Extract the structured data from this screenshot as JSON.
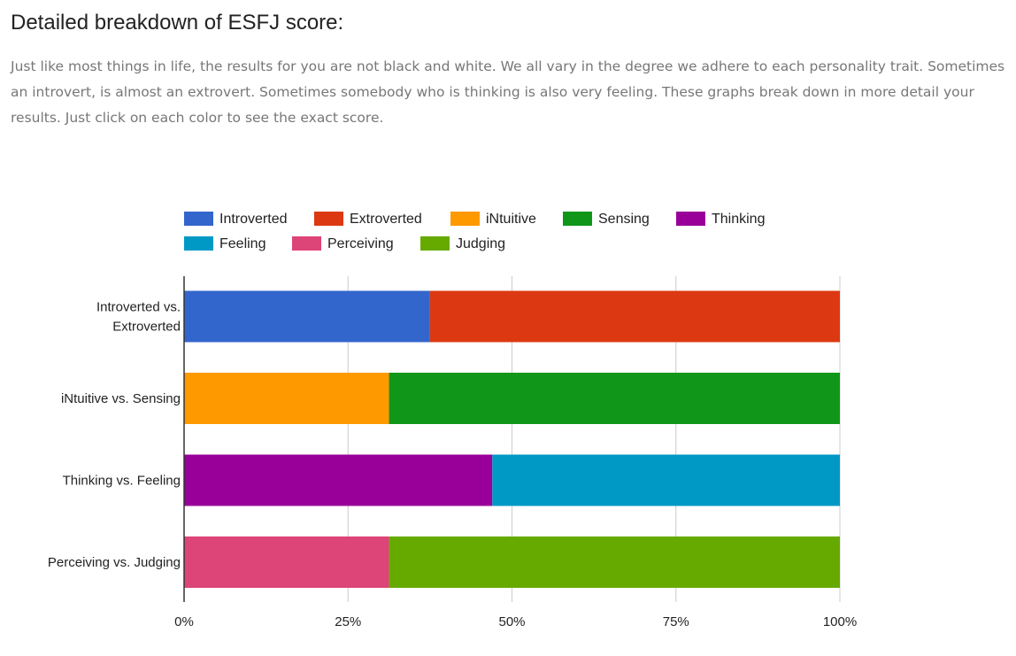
{
  "page": {
    "title": "Detailed breakdown of ESFJ score:",
    "intro": "Just like most things in life, the results for you are not black and white. We all vary in the degree we adhere to each personality trait. Sometimes an introvert, is almost an extrovert. Sometimes somebody who is thinking is also very feeling. These graphs break down in more detail your results. Just click on each color to see the exact score."
  },
  "chart_data": {
    "type": "bar",
    "orientation": "horizontal",
    "stacked": true,
    "legend_position": "top",
    "grid": true,
    "xlim": [
      0,
      100
    ],
    "x_ticks": [
      "0%",
      "25%",
      "50%",
      "75%",
      "100%"
    ],
    "categories": [
      "Introverted vs. Extroverted",
      "iNtuitive vs. Sensing",
      "Thinking vs. Feeling",
      "Perceiving vs. Judging"
    ],
    "category_lines": [
      [
        "Introverted vs.",
        "Extroverted"
      ],
      [
        "iNtuitive vs. Sensing"
      ],
      [
        "Thinking vs. Feeling"
      ],
      [
        "Perceiving vs. Judging"
      ]
    ],
    "legend": [
      {
        "label": "Introverted",
        "color": "#3366cc"
      },
      {
        "label": "Extroverted",
        "color": "#dc3912"
      },
      {
        "label": "iNtuitive",
        "color": "#ff9900"
      },
      {
        "label": "Sensing",
        "color": "#109618"
      },
      {
        "label": "Thinking",
        "color": "#990099"
      },
      {
        "label": "Feeling",
        "color": "#0099c6"
      },
      {
        "label": "Perceiving",
        "color": "#dd4477"
      },
      {
        "label": "Judging",
        "color": "#66aa00"
      }
    ],
    "bars": [
      {
        "segments": [
          {
            "series": "Introverted",
            "value": 37.5,
            "color": "#3366cc"
          },
          {
            "series": "Extroverted",
            "value": 62.5,
            "color": "#dc3912"
          }
        ]
      },
      {
        "segments": [
          {
            "series": "iNtuitive",
            "value": 31.25,
            "color": "#ff9900"
          },
          {
            "series": "Sensing",
            "value": 68.75,
            "color": "#109618"
          }
        ]
      },
      {
        "segments": [
          {
            "series": "Thinking",
            "value": 47,
            "color": "#990099"
          },
          {
            "series": "Feeling",
            "value": 53,
            "color": "#0099c6"
          }
        ]
      },
      {
        "segments": [
          {
            "series": "Perceiving",
            "value": 31.25,
            "color": "#dd4477"
          },
          {
            "series": "Judging",
            "value": 68.75,
            "color": "#66aa00"
          }
        ]
      }
    ]
  }
}
